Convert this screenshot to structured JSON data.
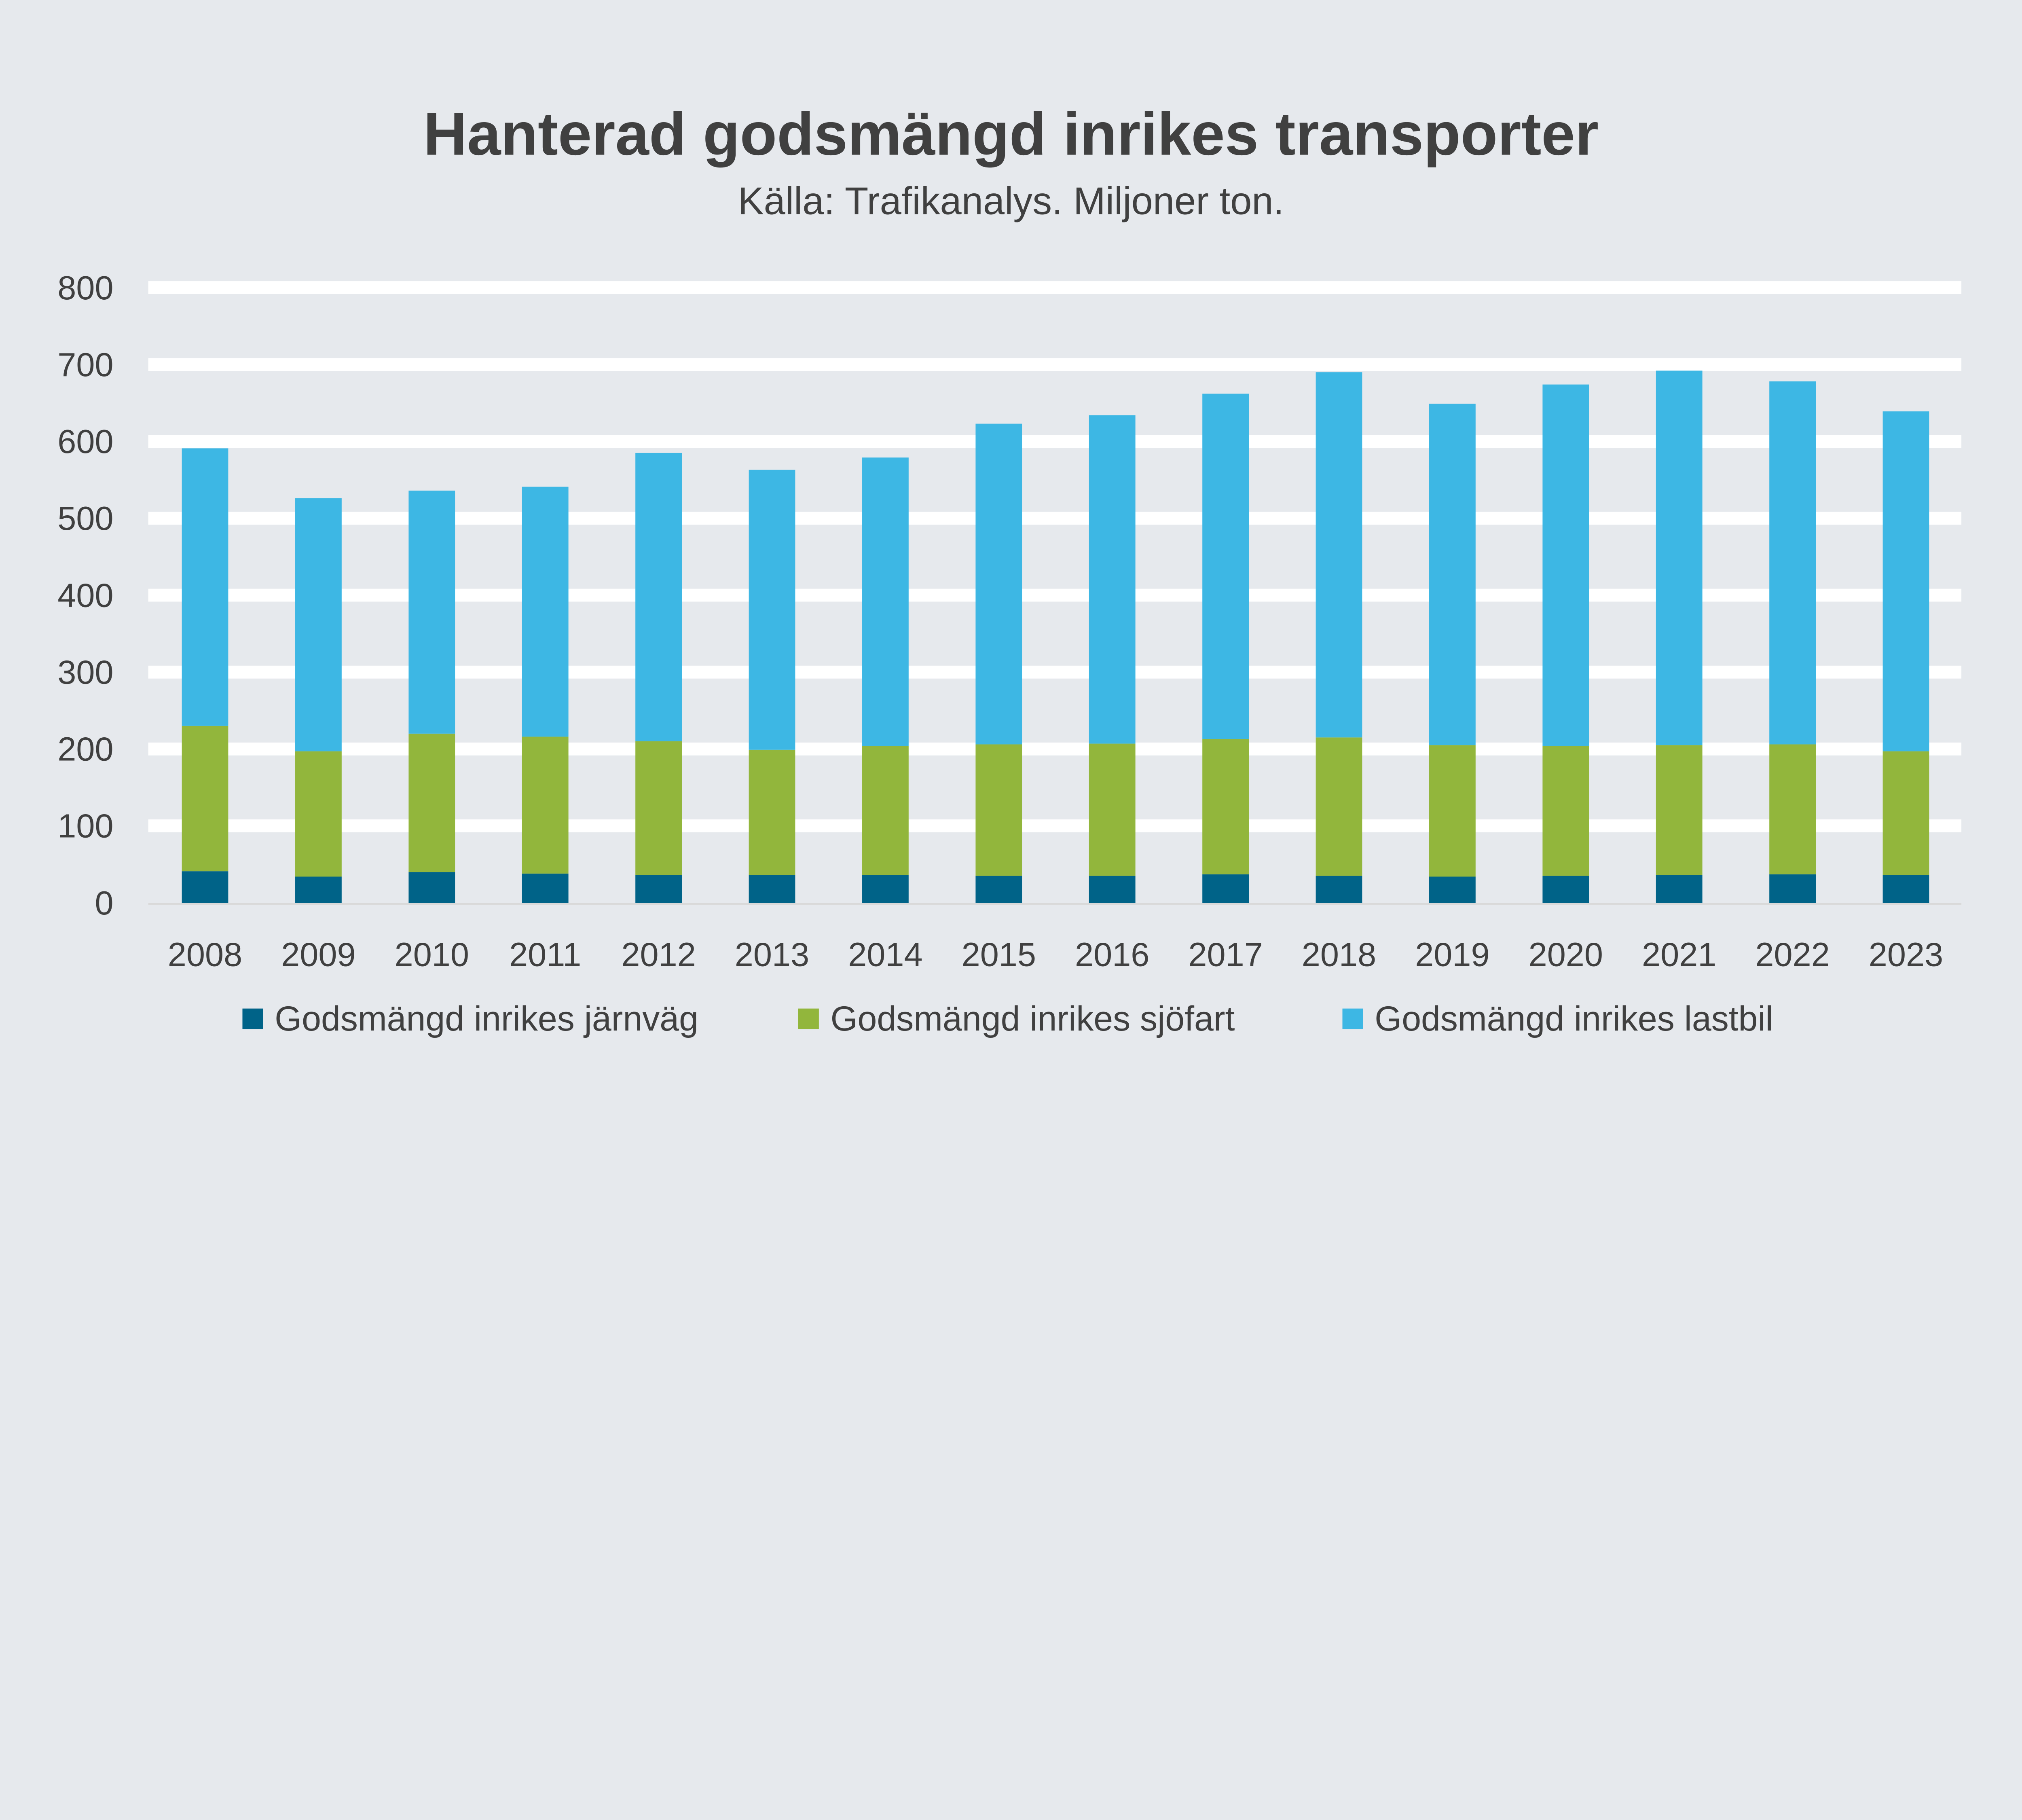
{
  "chart_data": {
    "type": "bar",
    "stacked": true,
    "title": "Hanterad godsmängd inrikes transporter",
    "subtitle": "Källa: Trafikanalys. Miljoner ton.",
    "xlabel": "",
    "ylabel": "",
    "ylim": [
      0,
      800
    ],
    "yticks": [
      0,
      100,
      200,
      300,
      400,
      500,
      600,
      700,
      800
    ],
    "grid": true,
    "legend_placement": "bottom",
    "background": "#e6e9ed",
    "categories": [
      "2008",
      "2009",
      "2010",
      "2011",
      "2012",
      "2013",
      "2014",
      "2015",
      "2016",
      "2017",
      "2018",
      "2019",
      "2020",
      "2021",
      "2022",
      "2023"
    ],
    "series": [
      {
        "name": "Godsmängd inrikes järnväg",
        "color": "#006388",
        "values": [
          41,
          34,
          40,
          38,
          36,
          36,
          36,
          35,
          35,
          37,
          35,
          34,
          35,
          36,
          37,
          36
        ]
      },
      {
        "name": "Godsmängd inrikes sjöfart",
        "color": "#92b63c",
        "values": [
          189,
          163,
          180,
          178,
          174,
          163,
          168,
          171,
          172,
          176,
          180,
          171,
          169,
          169,
          169,
          161
        ]
      },
      {
        "name": "Godsmängd inrikes lastbil",
        "color": "#3db7e4",
        "values": [
          361,
          329,
          316,
          325,
          375,
          364,
          375,
          417,
          427,
          449,
          475,
          444,
          470,
          487,
          472,
          442
        ]
      }
    ]
  }
}
